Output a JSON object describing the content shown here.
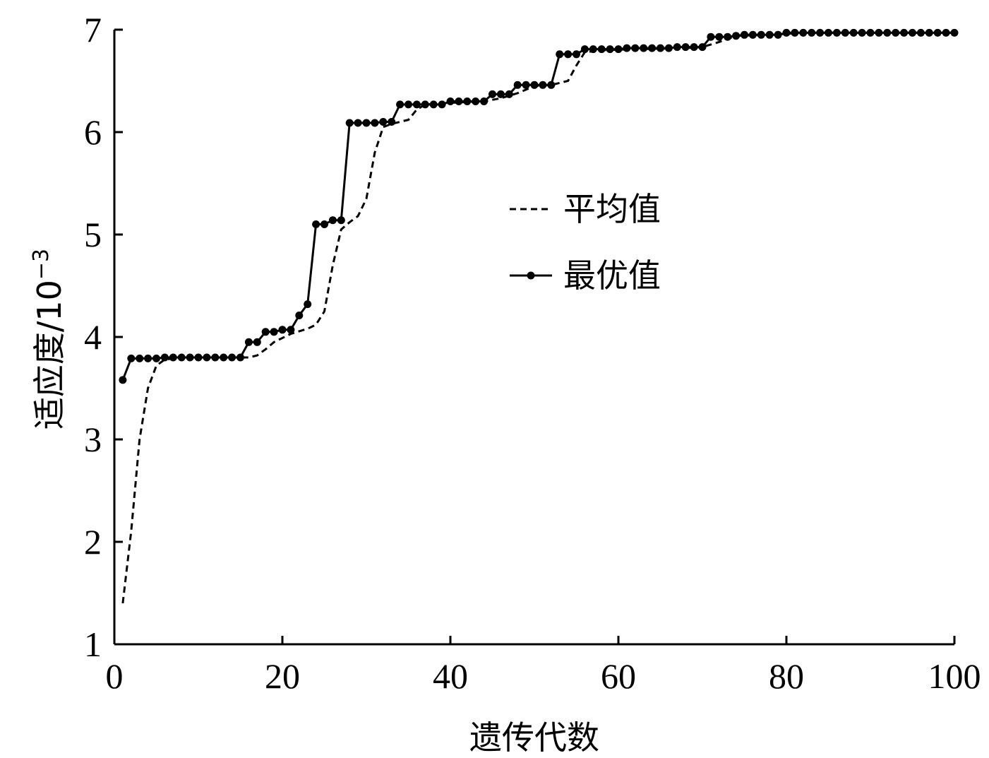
{
  "chart_data": {
    "type": "line",
    "xlabel": "遗传代数",
    "ylabel": "适应度/10",
    "ylabel_exponent": "−3",
    "xlim": [
      0,
      100
    ],
    "ylim": [
      1,
      7
    ],
    "xticks": [
      0,
      20,
      40,
      60,
      80,
      100
    ],
    "yticks": [
      1,
      2,
      3,
      4,
      5,
      6,
      7
    ],
    "grid": false,
    "legend_position": "upper-middle-right",
    "series": [
      {
        "name": "平均值",
        "style": "dashed",
        "color": "#000000",
        "points": [
          [
            1,
            1.4
          ],
          [
            2,
            2.1
          ],
          [
            3,
            3.0
          ],
          [
            4,
            3.5
          ],
          [
            5,
            3.72
          ],
          [
            6,
            3.78
          ],
          [
            8,
            3.8
          ],
          [
            10,
            3.8
          ],
          [
            14,
            3.8
          ],
          [
            16,
            3.8
          ],
          [
            17,
            3.82
          ],
          [
            18,
            3.88
          ],
          [
            19,
            3.95
          ],
          [
            21,
            4.03
          ],
          [
            23,
            4.08
          ],
          [
            24,
            4.12
          ],
          [
            25,
            4.25
          ],
          [
            26,
            4.7
          ],
          [
            27,
            5.05
          ],
          [
            28,
            5.12
          ],
          [
            29,
            5.18
          ],
          [
            30,
            5.35
          ],
          [
            31,
            5.8
          ],
          [
            32,
            6.05
          ],
          [
            33,
            6.08
          ],
          [
            35,
            6.12
          ],
          [
            36,
            6.22
          ],
          [
            37,
            6.27
          ],
          [
            39,
            6.28
          ],
          [
            41,
            6.29
          ],
          [
            44,
            6.3
          ],
          [
            46,
            6.33
          ],
          [
            48,
            6.38
          ],
          [
            50,
            6.45
          ],
          [
            52,
            6.46
          ],
          [
            54,
            6.5
          ],
          [
            55,
            6.65
          ],
          [
            56,
            6.78
          ],
          [
            58,
            6.8
          ],
          [
            62,
            6.81
          ],
          [
            68,
            6.82
          ],
          [
            70,
            6.83
          ],
          [
            72,
            6.88
          ],
          [
            74,
            6.94
          ],
          [
            78,
            6.95
          ],
          [
            82,
            6.97
          ],
          [
            90,
            6.97
          ],
          [
            100,
            6.97
          ]
        ]
      },
      {
        "name": "最优值",
        "style": "solid-markers",
        "color": "#000000",
        "points": [
          [
            1,
            3.58
          ],
          [
            2,
            3.79
          ],
          [
            3,
            3.79
          ],
          [
            4,
            3.79
          ],
          [
            5,
            3.79
          ],
          [
            6,
            3.8
          ],
          [
            7,
            3.8
          ],
          [
            8,
            3.8
          ],
          [
            9,
            3.8
          ],
          [
            10,
            3.8
          ],
          [
            11,
            3.8
          ],
          [
            12,
            3.8
          ],
          [
            13,
            3.8
          ],
          [
            14,
            3.8
          ],
          [
            15,
            3.8
          ],
          [
            16,
            3.95
          ],
          [
            17,
            3.95
          ],
          [
            18,
            4.05
          ],
          [
            19,
            4.05
          ],
          [
            20,
            4.07
          ],
          [
            21,
            4.07
          ],
          [
            22,
            4.21
          ],
          [
            23,
            4.32
          ],
          [
            24,
            5.1
          ],
          [
            25,
            5.1
          ],
          [
            26,
            5.14
          ],
          [
            27,
            5.14
          ],
          [
            28,
            6.09
          ],
          [
            29,
            6.09
          ],
          [
            30,
            6.09
          ],
          [
            31,
            6.09
          ],
          [
            32,
            6.1
          ],
          [
            33,
            6.1
          ],
          [
            34,
            6.27
          ],
          [
            35,
            6.27
          ],
          [
            36,
            6.27
          ],
          [
            37,
            6.27
          ],
          [
            38,
            6.27
          ],
          [
            39,
            6.27
          ],
          [
            40,
            6.3
          ],
          [
            41,
            6.3
          ],
          [
            42,
            6.3
          ],
          [
            43,
            6.3
          ],
          [
            44,
            6.3
          ],
          [
            45,
            6.37
          ],
          [
            46,
            6.37
          ],
          [
            47,
            6.37
          ],
          [
            48,
            6.46
          ],
          [
            49,
            6.46
          ],
          [
            50,
            6.46
          ],
          [
            51,
            6.46
          ],
          [
            52,
            6.46
          ],
          [
            53,
            6.76
          ],
          [
            54,
            6.76
          ],
          [
            55,
            6.76
          ],
          [
            56,
            6.81
          ],
          [
            57,
            6.81
          ],
          [
            58,
            6.81
          ],
          [
            59,
            6.81
          ],
          [
            60,
            6.81
          ],
          [
            61,
            6.82
          ],
          [
            62,
            6.82
          ],
          [
            63,
            6.82
          ],
          [
            64,
            6.82
          ],
          [
            65,
            6.82
          ],
          [
            66,
            6.82
          ],
          [
            67,
            6.83
          ],
          [
            68,
            6.83
          ],
          [
            69,
            6.83
          ],
          [
            70,
            6.83
          ],
          [
            71,
            6.93
          ],
          [
            72,
            6.93
          ],
          [
            73,
            6.93
          ],
          [
            74,
            6.94
          ],
          [
            75,
            6.95
          ],
          [
            76,
            6.95
          ],
          [
            77,
            6.95
          ],
          [
            78,
            6.95
          ],
          [
            79,
            6.95
          ],
          [
            80,
            6.97
          ],
          [
            81,
            6.97
          ],
          [
            82,
            6.97
          ],
          [
            83,
            6.97
          ],
          [
            84,
            6.97
          ],
          [
            85,
            6.97
          ],
          [
            86,
            6.97
          ],
          [
            87,
            6.97
          ],
          [
            88,
            6.97
          ],
          [
            89,
            6.97
          ],
          [
            90,
            6.97
          ],
          [
            91,
            6.97
          ],
          [
            92,
            6.97
          ],
          [
            93,
            6.97
          ],
          [
            94,
            6.97
          ],
          [
            95,
            6.97
          ],
          [
            96,
            6.97
          ],
          [
            97,
            6.97
          ],
          [
            98,
            6.97
          ],
          [
            99,
            6.97
          ],
          [
            100,
            6.97
          ]
        ]
      }
    ]
  }
}
